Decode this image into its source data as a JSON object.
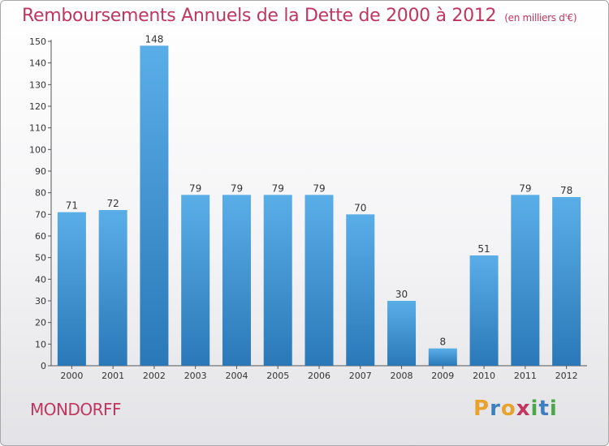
{
  "title": "Remboursements Annuels de la Dette de 2000 à 2012",
  "unit_note": "(en milliers d'€)",
  "commune": "MONDORFF",
  "logo": {
    "text": "Proxiti",
    "letters": [
      "P",
      "r",
      "o",
      "x",
      "i",
      "t",
      "i"
    ],
    "colors": [
      "#e8a32c",
      "#3c7fc1",
      "#e8a32c",
      "#c0365f",
      "#4aa84a",
      "#3c7fc1",
      "#4aa84a"
    ]
  },
  "colors": {
    "bar_top": "#5aaee8",
    "bar_bottom": "#2a78b8",
    "title": "#c0365f"
  },
  "chart_data": {
    "type": "bar",
    "title": "Remboursements Annuels de la Dette de 2000 à 2012",
    "xlabel": "",
    "ylabel": "",
    "categories": [
      "2000",
      "2001",
      "2002",
      "2003",
      "2004",
      "2005",
      "2006",
      "2007",
      "2008",
      "2009",
      "2010",
      "2011",
      "2012"
    ],
    "values": [
      71,
      72,
      148,
      79,
      79,
      79,
      79,
      70,
      30,
      8,
      51,
      79,
      78
    ],
    "ylim": [
      0,
      150
    ],
    "yticks": [
      0,
      10,
      20,
      30,
      40,
      50,
      60,
      70,
      80,
      90,
      100,
      110,
      120,
      130,
      140,
      150
    ],
    "grid": false,
    "legend": "none"
  }
}
